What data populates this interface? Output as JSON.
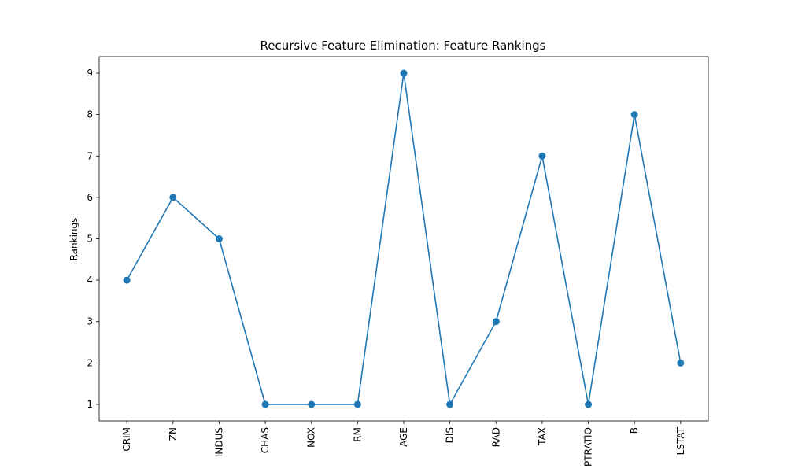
{
  "chart_data": {
    "type": "line",
    "title": "Recursive Feature Elimination: Feature Rankings",
    "xlabel": "",
    "ylabel": "Rankings",
    "categories": [
      "CRIM",
      "ZN",
      "INDUS",
      "CHAS",
      "NOX",
      "RM",
      "AGE",
      "DIS",
      "RAD",
      "TAX",
      "PTRATIO",
      "B",
      "LSTAT"
    ],
    "values": [
      4,
      6,
      5,
      1,
      1,
      1,
      9,
      1,
      3,
      7,
      1,
      8,
      2
    ],
    "yticks": [
      1,
      2,
      3,
      4,
      5,
      6,
      7,
      8,
      9
    ],
    "ylim": [
      0.6,
      9.4
    ],
    "grid": false,
    "marker": "circle",
    "line_color": "#1f77b4"
  }
}
